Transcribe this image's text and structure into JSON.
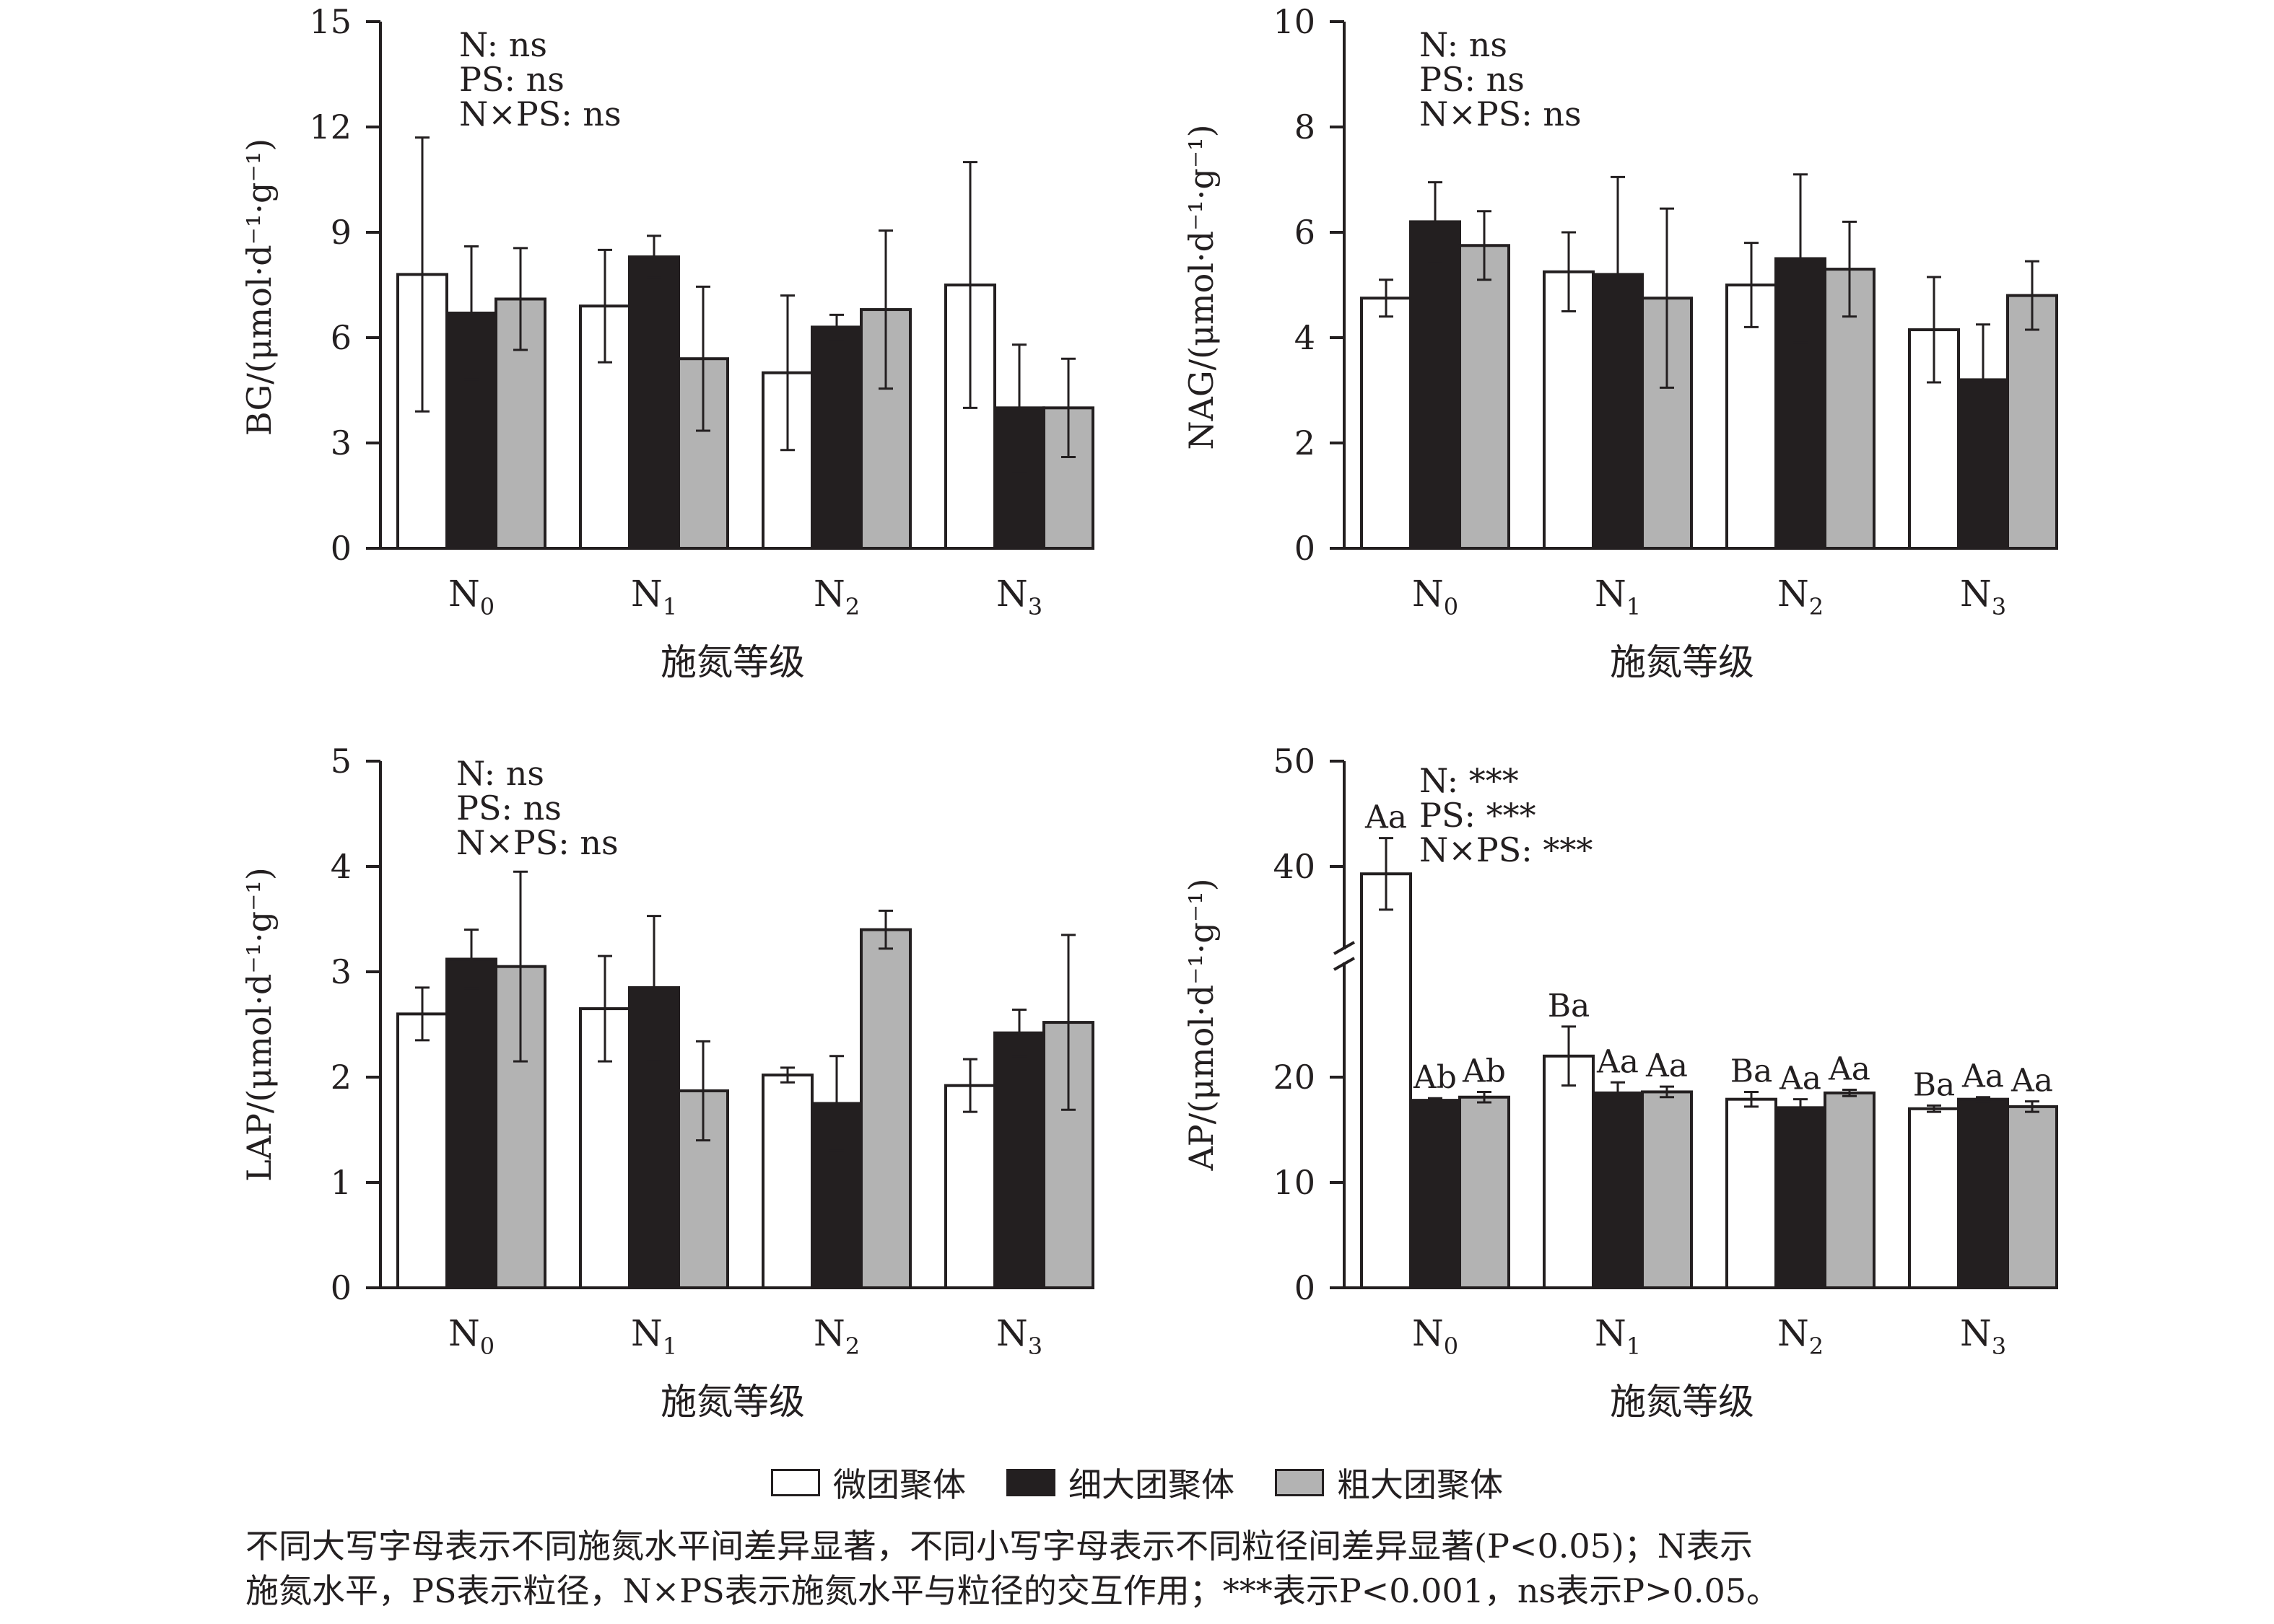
{
  "chart_data": [
    {
      "type": "bar",
      "ylabel": "BG/(μmol·d⁻¹·g⁻¹)",
      "xlabel": "施氮等级",
      "ylim": [
        0,
        15
      ],
      "yticks": [
        0,
        3,
        6,
        9,
        12,
        15
      ],
      "categories": [
        {
          "main": "N",
          "sub": "0"
        },
        {
          "main": "N",
          "sub": "1"
        },
        {
          "main": "N",
          "sub": "2"
        },
        {
          "main": "N",
          "sub": "3"
        }
      ],
      "stats": [
        "N: ns",
        "PS: ns",
        "N×PS: ns"
      ],
      "series": [
        {
          "name": "微团聚体",
          "color": "#ffffff",
          "values": [
            7.8,
            6.9,
            5.0,
            7.5
          ],
          "errors": [
            3.9,
            1.6,
            2.2,
            3.5
          ]
        },
        {
          "name": "细大团聚体",
          "color": "#231f20",
          "values": [
            6.7,
            8.3,
            6.3,
            4.0
          ],
          "errors": [
            1.9,
            0.6,
            0.35,
            1.8
          ]
        },
        {
          "name": "粗大团聚体",
          "color": "#b3b3b3",
          "values": [
            7.1,
            5.4,
            6.8,
            4.0
          ],
          "errors": [
            1.45,
            2.05,
            2.25,
            1.4
          ]
        }
      ]
    },
    {
      "type": "bar",
      "ylabel": "NAG/(μmol·d⁻¹·g⁻¹)",
      "xlabel": "施氮等级",
      "ylim": [
        0,
        10
      ],
      "yticks": [
        0,
        2,
        4,
        6,
        8,
        10
      ],
      "categories": [
        {
          "main": "N",
          "sub": "0"
        },
        {
          "main": "N",
          "sub": "1"
        },
        {
          "main": "N",
          "sub": "2"
        },
        {
          "main": "N",
          "sub": "3"
        }
      ],
      "stats": [
        "N: ns",
        "PS: ns",
        "N×PS: ns"
      ],
      "series": [
        {
          "name": "微团聚体",
          "color": "#ffffff",
          "values": [
            4.75,
            5.25,
            5.0,
            4.15
          ],
          "errors": [
            0.35,
            0.75,
            0.8,
            1.0
          ]
        },
        {
          "name": "细大团聚体",
          "color": "#231f20",
          "values": [
            6.2,
            5.2,
            5.5,
            3.2
          ],
          "errors": [
            0.75,
            1.85,
            1.6,
            1.05
          ]
        },
        {
          "name": "粗大团聚体",
          "color": "#b3b3b3",
          "values": [
            5.75,
            4.75,
            5.3,
            4.8
          ],
          "errors": [
            0.65,
            1.7,
            0.9,
            0.65
          ]
        }
      ]
    },
    {
      "type": "bar",
      "ylabel": "LAP/(μmol·d⁻¹·g⁻¹)",
      "xlabel": "施氮等级",
      "ylim": [
        0,
        5
      ],
      "yticks": [
        0,
        1,
        2,
        3,
        4,
        5
      ],
      "categories": [
        {
          "main": "N",
          "sub": "0"
        },
        {
          "main": "N",
          "sub": "1"
        },
        {
          "main": "N",
          "sub": "2"
        },
        {
          "main": "N",
          "sub": "3"
        }
      ],
      "stats": [
        "N: ns",
        "PS: ns",
        "N×PS: ns"
      ],
      "series": [
        {
          "name": "微团聚体",
          "color": "#ffffff",
          "values": [
            2.6,
            2.65,
            2.02,
            1.92
          ],
          "errors": [
            0.25,
            0.5,
            0.07,
            0.25
          ]
        },
        {
          "name": "细大团聚体",
          "color": "#231f20",
          "values": [
            3.12,
            2.85,
            1.75,
            2.42
          ],
          "errors": [
            0.28,
            0.68,
            0.45,
            0.22
          ]
        },
        {
          "name": "粗大团聚体",
          "color": "#b3b3b3",
          "values": [
            3.05,
            1.87,
            3.4,
            2.52
          ],
          "errors": [
            0.9,
            0.47,
            0.18,
            0.83
          ]
        }
      ]
    },
    {
      "type": "bar",
      "ylabel": "AP/(μmol·d⁻¹·g⁻¹)",
      "xlabel": "施氮等级",
      "ylim": [
        0,
        50
      ],
      "yticks": [
        0,
        10,
        20,
        40,
        50
      ],
      "axis_break": true,
      "categories": [
        {
          "main": "N",
          "sub": "0"
        },
        {
          "main": "N",
          "sub": "1"
        },
        {
          "main": "N",
          "sub": "2"
        },
        {
          "main": "N",
          "sub": "3"
        }
      ],
      "stats": [
        "N: ***",
        "PS: ***",
        "N×PS: ***"
      ],
      "series": [
        {
          "name": "微团聚体",
          "color": "#ffffff",
          "values": [
            39.3,
            22.0,
            17.9,
            17.0
          ],
          "errors": [
            3.4,
            2.8,
            0.7,
            0.3
          ],
          "labels": [
            "Aa",
            "Ba",
            "Ba",
            "Ba"
          ]
        },
        {
          "name": "细大团聚体",
          "color": "#231f20",
          "values": [
            17.8,
            18.5,
            17.1,
            17.9
          ],
          "errors": [
            0.2,
            1.0,
            0.8,
            0.2
          ],
          "labels": [
            "Ab",
            "Aa",
            "Aa",
            "Aa"
          ]
        },
        {
          "name": "粗大团聚体",
          "color": "#b3b3b3",
          "values": [
            18.1,
            18.6,
            18.5,
            17.2
          ],
          "errors": [
            0.5,
            0.5,
            0.3,
            0.5
          ],
          "labels": [
            "Ab",
            "Aa",
            "Aa",
            "Aa"
          ]
        }
      ]
    }
  ],
  "legend": [
    {
      "label": "微团聚体",
      "color": "#ffffff"
    },
    {
      "label": "细大团聚体",
      "color": "#231f20"
    },
    {
      "label": "粗大团聚体",
      "color": "#b3b3b3"
    }
  ],
  "note": {
    "line1": "不同大写字母表示不同施氮水平间差异显著，不同小写字母表示不同粒径间差异显著(P<0.05)；N表示",
    "line2": "施氮水平，PS表示粒径，N×PS表示施氮水平与粒径的交互作用；***表示P<0.001，ns表示P>0.05。"
  }
}
